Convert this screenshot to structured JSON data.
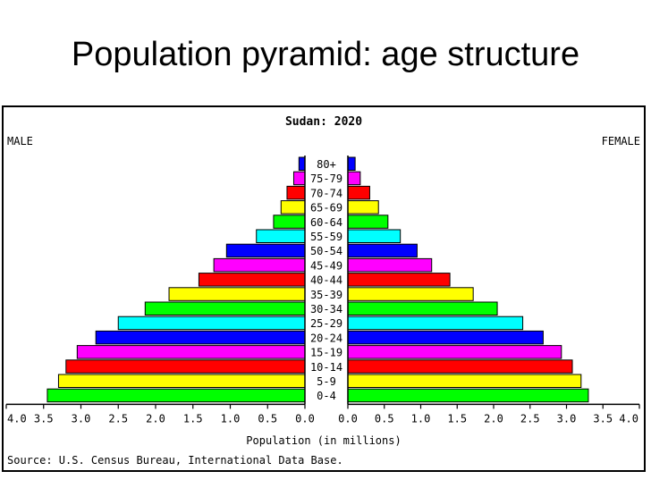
{
  "slide": {
    "title": "Population pyramid: age structure"
  },
  "chart_data": {
    "type": "bar",
    "title": "Sudan: 2020",
    "left_label": "MALE",
    "right_label": "FEMALE",
    "xlabel": "Population (in millions)",
    "source": "Source: U.S. Census Bureau, International Data Base.",
    "xlim": [
      0,
      4.0
    ],
    "ticks": [
      "4.0",
      "3.5",
      "3.0",
      "2.5",
      "2.0",
      "1.5",
      "1.0",
      "0.5",
      "0.0",
      "0.0",
      "0.5",
      "1.0",
      "1.5",
      "2.0",
      "2.5",
      "3.0",
      "3.5",
      "4.0"
    ],
    "categories": [
      "80+",
      "75-79",
      "70-74",
      "65-69",
      "60-64",
      "55-59",
      "50-54",
      "45-49",
      "40-44",
      "35-39",
      "30-34",
      "25-29",
      "20-24",
      "15-19",
      "10-14",
      "5-9",
      "0-4"
    ],
    "colors": [
      "#0000ff",
      "#ff00ff",
      "#ff0000",
      "#ffff00",
      "#00ff00",
      "#00ffff",
      "#0000ff",
      "#ff00ff",
      "#ff0000",
      "#ffff00",
      "#00ff00",
      "#00ffff",
      "#0000ff",
      "#ff00ff",
      "#ff0000",
      "#ffff00",
      "#00ff00"
    ],
    "series": [
      {
        "name": "MALE",
        "values": [
          0.08,
          0.15,
          0.24,
          0.32,
          0.42,
          0.65,
          1.05,
          1.22,
          1.42,
          1.82,
          2.14,
          2.5,
          2.8,
          3.05,
          3.2,
          3.3,
          3.45
        ]
      },
      {
        "name": "FEMALE",
        "values": [
          0.1,
          0.17,
          0.3,
          0.42,
          0.55,
          0.72,
          0.95,
          1.15,
          1.4,
          1.72,
          2.05,
          2.4,
          2.68,
          2.93,
          3.08,
          3.2,
          3.3
        ]
      }
    ]
  }
}
